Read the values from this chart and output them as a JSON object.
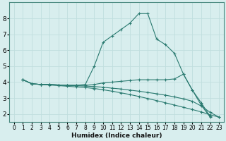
{
  "xlabel": "Humidex (Indice chaleur)",
  "background_color": "#d8eeee",
  "grid_color": "#c0dede",
  "line_color": "#2a7a70",
  "xlim": [
    -0.5,
    23.5
  ],
  "ylim": [
    1.5,
    9.0
  ],
  "yticks": [
    2,
    3,
    4,
    5,
    6,
    7,
    8
  ],
  "xticks": [
    0,
    1,
    2,
    3,
    4,
    5,
    6,
    7,
    8,
    9,
    10,
    11,
    12,
    13,
    14,
    15,
    16,
    17,
    18,
    19,
    20,
    21,
    22,
    23
  ],
  "lines": [
    {
      "x": [
        1,
        2,
        3,
        4,
        5,
        6,
        7,
        8,
        9,
        10,
        11,
        12,
        13,
        14,
        15,
        16,
        17,
        18,
        19,
        20,
        21,
        22,
        23
      ],
      "y": [
        4.15,
        3.9,
        3.85,
        3.85,
        3.82,
        3.8,
        3.8,
        3.85,
        5.0,
        6.5,
        6.9,
        7.3,
        7.7,
        8.3,
        8.3,
        6.7,
        6.35,
        5.8,
        4.5,
        3.5,
        2.55,
        1.8,
        null
      ]
    },
    {
      "x": [
        1,
        2,
        3,
        4,
        5,
        6,
        7,
        8,
        9,
        10,
        11,
        12,
        13,
        14,
        15,
        16,
        17,
        18,
        19,
        20,
        21,
        22,
        23
      ],
      "y": [
        4.15,
        3.9,
        3.85,
        3.85,
        3.82,
        3.8,
        3.8,
        3.8,
        3.85,
        3.95,
        4.0,
        4.05,
        4.1,
        4.15,
        4.15,
        4.15,
        4.15,
        4.2,
        4.5,
        3.5,
        2.7,
        1.85,
        null
      ]
    },
    {
      "x": [
        1,
        2,
        3,
        4,
        5,
        6,
        7,
        8,
        9,
        10,
        11,
        12,
        13,
        14,
        15,
        16,
        17,
        18,
        19,
        20,
        21,
        22,
        23
      ],
      "y": [
        4.15,
        3.9,
        3.85,
        3.85,
        3.82,
        3.79,
        3.77,
        3.75,
        3.72,
        3.68,
        3.62,
        3.57,
        3.5,
        3.43,
        3.35,
        3.27,
        3.18,
        3.07,
        2.95,
        2.8,
        2.5,
        2.1,
        1.8
      ]
    },
    {
      "x": [
        1,
        2,
        3,
        4,
        5,
        6,
        7,
        8,
        9,
        10,
        11,
        12,
        13,
        14,
        15,
        16,
        17,
        18,
        19,
        20,
        21,
        22,
        23
      ],
      "y": [
        4.15,
        3.9,
        3.85,
        3.82,
        3.78,
        3.74,
        3.7,
        3.66,
        3.6,
        3.52,
        3.43,
        3.33,
        3.22,
        3.1,
        2.97,
        2.84,
        2.7,
        2.56,
        2.42,
        2.28,
        2.13,
        1.95,
        1.8
      ]
    }
  ]
}
